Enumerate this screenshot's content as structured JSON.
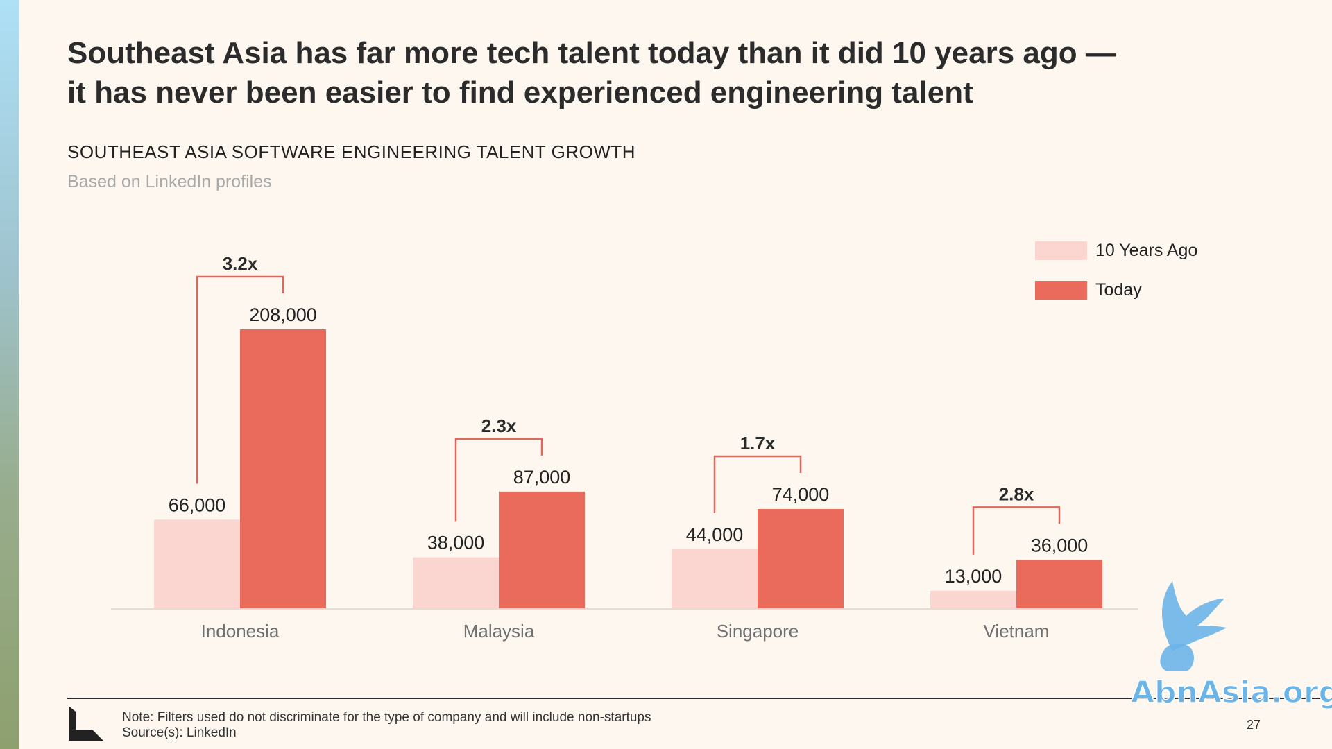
{
  "headline": {
    "line1": "Southeast Asia has far more tech talent today than it did 10 years ago —",
    "line2": "it has never been easier to find experienced engineering talent"
  },
  "chart_data": {
    "type": "bar",
    "title": "SOUTHEAST ASIA SOFTWARE ENGINEERING TALENT GROWTH",
    "subtitle": "Based on LinkedIn profiles",
    "categories": [
      "Indonesia",
      "Malaysia",
      "Singapore",
      "Vietnam"
    ],
    "series": [
      {
        "name": "10 Years Ago",
        "color": "#fbd5cf",
        "values": [
          66000,
          38000,
          44000,
          13000
        ],
        "labels": [
          "66,000",
          "38,000",
          "44,000",
          "13,000"
        ]
      },
      {
        "name": "Today",
        "color": "#ea6b5c",
        "values": [
          208000,
          87000,
          74000,
          36000
        ],
        "labels": [
          "208,000",
          "87,000",
          "74,000",
          "36,000"
        ]
      }
    ],
    "growth_labels": [
      "3.2x",
      "2.3x",
      "1.7x",
      "2.8x"
    ],
    "bracket_color": "#e0675a",
    "xlabel": "",
    "ylabel": "",
    "ylim": [
      0,
      208000
    ],
    "grid": false,
    "legend_position": "top-right"
  },
  "footer": {
    "note": "Note: Filters used do not discriminate for the type of company and will include non-startups",
    "source": "Source(s): LinkedIn",
    "page_number": "27"
  },
  "watermark": {
    "text": "AbnAsia.org",
    "color": "#6bb4e8",
    "icon": "winged-lion-icon"
  }
}
